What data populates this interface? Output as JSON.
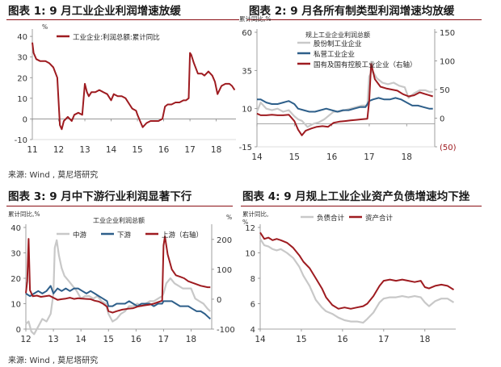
{
  "titles": {
    "fig1": "图表 1:  9 月工业企业利润增速放缓",
    "fig2": "图表 2:  9 月各所有制类型利润增速均放缓",
    "fig3": "图表 3:  9 月中下游行业利润显著下行",
    "fig4": "图表 4:  9 月规上工业企业资产负债增速均下挫"
  },
  "sources": {
    "top": "来源:  Wind ,  莫尼塔研究",
    "bottom": "来源:  Wind ,  莫尼塔研究"
  },
  "colors": {
    "red": "#9e1b20",
    "blue": "#2e5f8a",
    "gray": "#c8c8c8",
    "rule": "#8a0f14"
  },
  "chart_data": [
    {
      "id": "fig1",
      "type": "line",
      "unit_label": "%",
      "xticks": [
        "11",
        "12",
        "13",
        "14",
        "15",
        "16",
        "17",
        "18"
      ],
      "yticks": [
        "40",
        "30",
        "20",
        "10",
        "0",
        "-10"
      ],
      "ylim": [
        -10,
        42
      ],
      "xlim": [
        11.0,
        18.75
      ],
      "legend": [
        "工业企业:利润总额:累计同比"
      ],
      "series": [
        {
          "name": "工业企业:利润总额:累计同比",
          "color": "red",
          "x": [
            11.0,
            11.05,
            11.15,
            11.3,
            11.5,
            11.65,
            11.8,
            11.95,
            12.05,
            12.12,
            12.2,
            12.35,
            12.5,
            12.6,
            12.75,
            12.9,
            13.0,
            13.08,
            13.15,
            13.25,
            13.4,
            13.55,
            13.7,
            13.85,
            14.0,
            14.1,
            14.25,
            14.4,
            14.55,
            14.7,
            14.8,
            14.95,
            15.0,
            15.1,
            15.2,
            15.35,
            15.5,
            15.6,
            15.8,
            15.95,
            16.05,
            16.15,
            16.3,
            16.45,
            16.6,
            16.75,
            16.85,
            16.95,
            17.0,
            17.05,
            17.15,
            17.3,
            17.45,
            17.55,
            17.7,
            17.85,
            17.95,
            18.05,
            18.2,
            18.35,
            18.5,
            18.6,
            18.7
          ],
          "y": [
            37,
            32,
            29,
            28,
            28,
            27,
            25,
            20,
            -3,
            -5,
            -1,
            1,
            -1,
            2,
            3,
            2,
            17,
            13,
            11,
            13,
            13,
            14,
            13,
            12,
            9,
            12,
            11,
            11,
            10,
            7,
            5,
            4,
            2,
            -1,
            -4,
            -2,
            -1,
            -1,
            -1,
            0,
            6,
            7,
            7,
            8,
            8,
            9,
            9,
            10,
            32,
            31,
            27,
            22,
            22,
            21,
            23,
            21,
            18,
            12,
            16,
            17,
            17,
            16,
            14
          ]
        }
      ]
    },
    {
      "id": "fig2",
      "type": "line",
      "unit_label": "累计同比,%",
      "chart_title": "规上工业企业利润总额",
      "xticks": [
        "14",
        "15",
        "16",
        "17",
        "18"
      ],
      "yticks_left": [
        "60",
        "35",
        "10",
        "-15"
      ],
      "yticks_right": [
        "150",
        "100",
        "50",
        "0",
        "(50)"
      ],
      "ylim_left": [
        -15,
        60
      ],
      "ylim_right": [
        -50,
        150
      ],
      "xlim": [
        14.0,
        18.75
      ],
      "legend": [
        "股份制工业企业",
        "私营工业企业",
        "国有及国有控股工业企业（右轴）"
      ],
      "series": [
        {
          "name": "股份制工业企业",
          "color": "gray",
          "x": [
            14.0,
            14.1,
            14.25,
            14.4,
            14.55,
            14.7,
            14.85,
            15.0,
            15.1,
            15.2,
            15.35,
            15.5,
            15.65,
            15.8,
            15.95,
            16.05,
            16.2,
            16.35,
            16.5,
            16.65,
            16.8,
            16.95,
            17.0,
            17.08,
            17.2,
            17.35,
            17.5,
            17.65,
            17.8,
            17.95,
            18.05,
            18.2,
            18.35,
            18.5,
            18.6,
            18.7
          ],
          "y": [
            8,
            14,
            10,
            9,
            10,
            8,
            9,
            5,
            3,
            2,
            -2,
            0,
            1,
            3,
            6,
            8,
            8,
            9,
            10,
            11,
            12,
            12,
            31,
            35,
            30,
            27,
            26,
            27,
            25,
            24,
            17,
            20,
            22,
            22,
            21,
            21
          ]
        },
        {
          "name": "私营工业企业",
          "color": "blue",
          "x": [
            14.0,
            14.1,
            14.25,
            14.4,
            14.55,
            14.7,
            14.85,
            15.0,
            15.1,
            15.25,
            15.4,
            15.55,
            15.7,
            15.85,
            16.0,
            16.15,
            16.3,
            16.45,
            16.6,
            16.75,
            16.9,
            17.0,
            17.1,
            17.25,
            17.4,
            17.55,
            17.7,
            17.85,
            18.0,
            18.15,
            18.3,
            18.45,
            18.6,
            18.7
          ],
          "y": [
            16,
            16,
            14,
            13,
            13,
            14,
            15,
            13,
            10,
            9,
            8,
            8,
            9,
            10,
            9,
            8,
            9,
            9,
            10,
            11,
            11,
            15,
            16,
            17,
            16,
            16,
            17,
            16,
            14,
            12,
            12,
            11,
            10,
            10
          ]
        },
        {
          "name": "国有及国有控股工业企业（右轴）",
          "color": "red",
          "axis": "right",
          "x": [
            14.0,
            14.1,
            14.25,
            14.4,
            14.55,
            14.7,
            14.85,
            15.0,
            15.1,
            15.2,
            15.3,
            15.45,
            15.6,
            15.75,
            15.9,
            16.05,
            16.2,
            16.35,
            16.5,
            16.65,
            16.8,
            16.95,
            17.0,
            17.05,
            17.15,
            17.3,
            17.45,
            17.6,
            17.75,
            17.9,
            18.05,
            18.2,
            18.35,
            18.5,
            18.6,
            18.7
          ],
          "y": [
            8,
            5,
            5,
            6,
            5,
            5,
            6,
            -5,
            -20,
            -30,
            -22,
            -18,
            -15,
            -14,
            -15,
            -8,
            -6,
            -5,
            -4,
            -3,
            -2,
            -1,
            30,
            95,
            68,
            55,
            52,
            50,
            48,
            42,
            38,
            40,
            45,
            42,
            40,
            38
          ]
        }
      ]
    },
    {
      "id": "fig3",
      "type": "line",
      "unit_label": "累计同比,%",
      "unit_label_right": "%",
      "chart_title": "工业企业利润总额",
      "xticks": [
        "12",
        "13",
        "14",
        "15",
        "16",
        "17",
        "18"
      ],
      "yticks_left": [
        "40",
        "30",
        "20",
        "10",
        "0"
      ],
      "yticks_right": [
        "200",
        "100",
        "0",
        "-100"
      ],
      "ylim_left": [
        0,
        40
      ],
      "ylim_right": [
        -100,
        240
      ],
      "xlim": [
        12.0,
        18.75
      ],
      "legend": [
        "中游",
        "下游",
        "上游（右轴）"
      ],
      "series": [
        {
          "name": "中游",
          "color": "gray",
          "x": [
            12.0,
            12.1,
            12.2,
            12.3,
            12.45,
            12.6,
            12.75,
            12.9,
            13.0,
            13.05,
            13.12,
            13.2,
            13.3,
            13.4,
            13.55,
            13.7,
            13.85,
            14.0,
            14.15,
            14.3,
            14.45,
            14.6,
            14.75,
            14.9,
            15.0,
            15.15,
            15.3,
            15.45,
            15.6,
            15.75,
            15.9,
            16.05,
            16.2,
            16.35,
            16.5,
            16.65,
            16.8,
            16.95,
            17.0,
            17.1,
            17.25,
            17.4,
            17.55,
            17.7,
            17.85,
            18.0,
            18.15,
            18.3,
            18.45,
            18.6,
            18.7
          ],
          "y": [
            2,
            3,
            -1,
            -2,
            1,
            4,
            3,
            6,
            14,
            32,
            35,
            29,
            24,
            21,
            19,
            17,
            15,
            12,
            13,
            13,
            12,
            13,
            11,
            10,
            6,
            3,
            4,
            6,
            7,
            9,
            9,
            10,
            9,
            10,
            11,
            11,
            12,
            13,
            14,
            18,
            20,
            18,
            17,
            16,
            16,
            16,
            12,
            11,
            10,
            8,
            7
          ]
        },
        {
          "name": "下游",
          "color": "blue",
          "x": [
            12.0,
            12.15,
            12.3,
            12.45,
            12.6,
            12.75,
            12.9,
            13.0,
            13.15,
            13.3,
            13.45,
            13.6,
            13.75,
            13.9,
            14.05,
            14.2,
            14.35,
            14.5,
            14.65,
            14.8,
            14.95,
            15.0,
            15.15,
            15.3,
            15.45,
            15.6,
            15.75,
            15.9,
            16.05,
            16.2,
            16.35,
            16.5,
            16.65,
            16.8,
            16.95,
            17.0,
            17.15,
            17.3,
            17.45,
            17.6,
            17.75,
            17.9,
            18.05,
            18.2,
            18.35,
            18.5,
            18.6,
            18.7
          ],
          "y": [
            14,
            13,
            14,
            15,
            14,
            15,
            17,
            14,
            16,
            15,
            16,
            15,
            16,
            16,
            15,
            14,
            15,
            14,
            13,
            12,
            11,
            9,
            9,
            10,
            10,
            10,
            11,
            10,
            9,
            10,
            10,
            10,
            9,
            10,
            10,
            11,
            11,
            11,
            10,
            9,
            9,
            9,
            8,
            7,
            7,
            6,
            5,
            4
          ]
        },
        {
          "name": "上游（右轴）",
          "color": "red",
          "axis": "right",
          "x": [
            12.0,
            12.05,
            12.1,
            12.15,
            12.25,
            12.4,
            12.55,
            12.7,
            12.85,
            13.0,
            13.15,
            13.3,
            13.45,
            13.6,
            13.75,
            13.9,
            14.05,
            14.2,
            14.35,
            14.5,
            14.65,
            14.8,
            14.95,
            15.0,
            15.15,
            15.3,
            15.5,
            15.7,
            15.9,
            16.05,
            16.2,
            16.35,
            16.5,
            16.65,
            16.8,
            16.95,
            17.0,
            17.05,
            17.15,
            17.3,
            17.45,
            17.6,
            17.75,
            17.9,
            18.05,
            18.2,
            18.35,
            18.5,
            18.6,
            18.7
          ],
          "y": [
            20,
            60,
            202,
            30,
            10,
            12,
            8,
            10,
            12,
            5,
            -2,
            0,
            2,
            5,
            1,
            3,
            2,
            1,
            0,
            -5,
            -8,
            -15,
            -25,
            -40,
            -45,
            -40,
            -35,
            -32,
            -30,
            -25,
            -22,
            -20,
            -18,
            -15,
            -10,
            -5,
            180,
            210,
            150,
            100,
            80,
            75,
            70,
            60,
            55,
            50,
            45,
            42,
            40,
            40
          ]
        }
      ]
    },
    {
      "id": "fig4",
      "type": "line",
      "unit_label": "累计同比,\n%",
      "xticks": [
        "14",
        "15",
        "16",
        "17",
        "18"
      ],
      "yticks": [
        "12",
        "10",
        "8",
        "6",
        "4"
      ],
      "ylim": [
        4,
        12
      ],
      "xlim": [
        14.0,
        18.75
      ],
      "legend": [
        "负债合计",
        "资产合计"
      ],
      "series": [
        {
          "name": "负债合计",
          "color": "gray",
          "x": [
            14.0,
            14.1,
            14.2,
            14.3,
            14.4,
            14.5,
            14.65,
            14.8,
            14.95,
            15.05,
            15.2,
            15.35,
            15.5,
            15.6,
            15.75,
            15.9,
            16.05,
            16.2,
            16.35,
            16.5,
            16.6,
            16.75,
            16.9,
            17.0,
            17.15,
            17.3,
            17.45,
            17.6,
            17.75,
            17.9,
            18.0,
            18.1,
            18.25,
            18.4,
            18.55,
            18.7
          ],
          "y": [
            11.1,
            10.6,
            10.5,
            10.3,
            10.2,
            10.3,
            10.0,
            9.6,
            8.9,
            8.2,
            7.4,
            6.3,
            5.7,
            5.4,
            5.2,
            4.9,
            4.7,
            4.6,
            4.6,
            4.5,
            4.8,
            5.3,
            6.1,
            6.4,
            6.5,
            6.5,
            6.6,
            6.5,
            6.6,
            6.5,
            6.1,
            5.8,
            6.2,
            6.4,
            6.4,
            6.1
          ]
        },
        {
          "name": "资产合计",
          "color": "red",
          "x": [
            14.0,
            14.1,
            14.2,
            14.3,
            14.4,
            14.5,
            14.65,
            14.8,
            14.95,
            15.05,
            15.2,
            15.35,
            15.5,
            15.6,
            15.75,
            15.9,
            16.05,
            16.2,
            16.35,
            16.5,
            16.6,
            16.75,
            16.9,
            17.0,
            17.15,
            17.3,
            17.45,
            17.6,
            17.75,
            17.9,
            18.0,
            18.1,
            18.25,
            18.4,
            18.55,
            18.7
          ],
          "y": [
            11.6,
            11.1,
            11.2,
            11.0,
            11.1,
            11.0,
            10.8,
            10.4,
            9.8,
            9.3,
            8.8,
            8.0,
            7.2,
            6.5,
            5.9,
            5.6,
            5.7,
            5.6,
            5.7,
            5.8,
            6.0,
            6.6,
            7.4,
            7.8,
            7.9,
            7.8,
            7.9,
            7.8,
            7.7,
            7.8,
            7.3,
            7.2,
            7.4,
            7.5,
            7.4,
            7.1
          ]
        }
      ]
    }
  ]
}
